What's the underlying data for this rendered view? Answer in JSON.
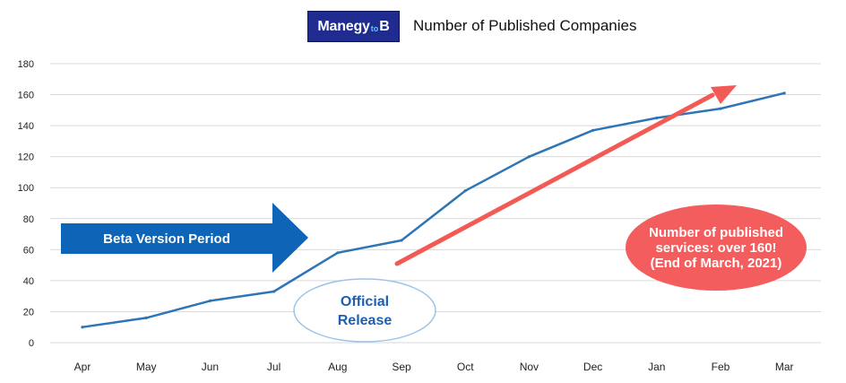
{
  "logo": {
    "text_main": "Manegy",
    "text_small": "to",
    "text_end": "B"
  },
  "colors": {
    "line": "#2e75b6",
    "grid": "#d9d9d9",
    "beta_arrow": "#0e64b6",
    "trend_arrow": "#f25a55",
    "callout": "#f45d5d",
    "release_ellipse": "#9cc3e8"
  },
  "chart_data": {
    "type": "line",
    "title": "Number of Published Companies",
    "categories": [
      "Apr",
      "May",
      "Jun",
      "Jul",
      "Aug",
      "Sep",
      "Oct",
      "Nov",
      "Dec",
      "Jan",
      "Feb",
      "Mar"
    ],
    "series": [
      {
        "values": [
          10,
          16,
          27,
          33,
          58,
          66,
          98,
          120,
          137,
          145,
          151,
          161
        ]
      }
    ],
    "ylim": [
      0,
      180
    ],
    "yticks": [
      0,
      20,
      40,
      60,
      80,
      100,
      120,
      140,
      160,
      180
    ],
    "grid": true,
    "annotations": {
      "beta": "Beta Version Period",
      "release": "Official\nRelease",
      "callout": "Number of published\nservices: over 160!\n(End of March, 2021)"
    }
  }
}
